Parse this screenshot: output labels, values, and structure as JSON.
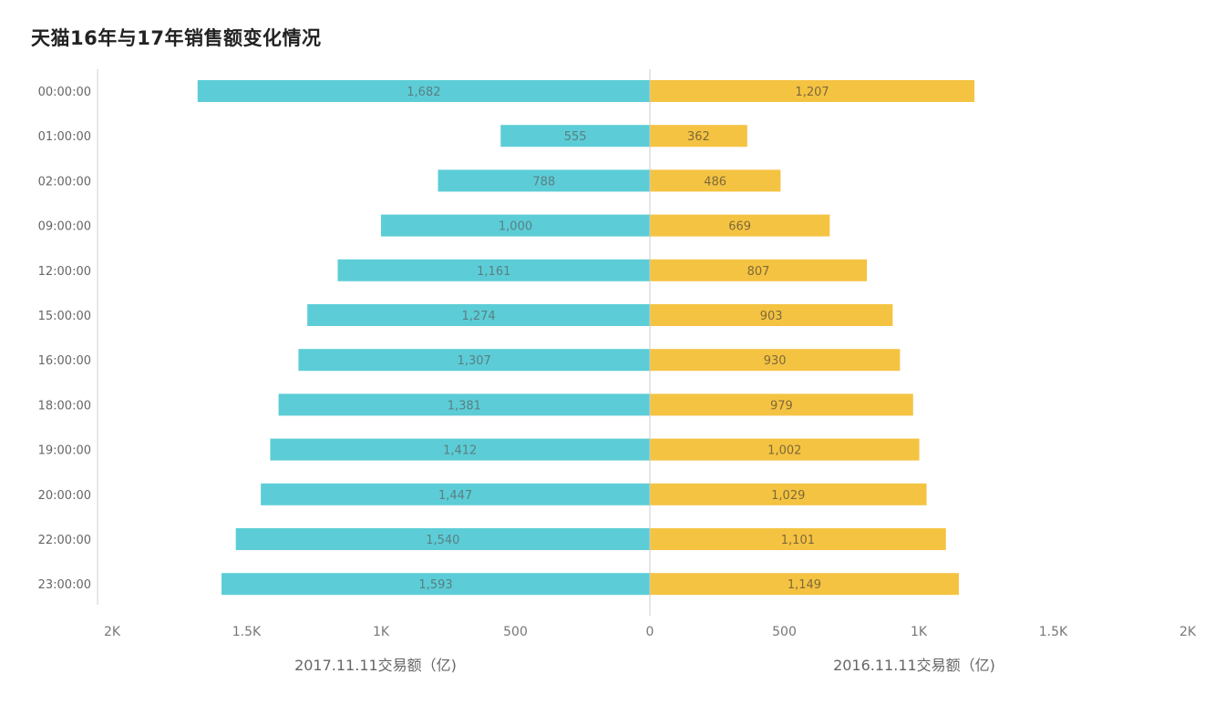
{
  "title": "天猫16年与17年销售额变化情况",
  "chart_data": {
    "type": "bar",
    "orientation": "horizontal-butterfly",
    "title": "天猫16年与17年销售额变化情况",
    "categories": [
      "00:00:00",
      "01:00:00",
      "02:00:00",
      "09:00:00",
      "12:00:00",
      "15:00:00",
      "16:00:00",
      "18:00:00",
      "19:00:00",
      "20:00:00",
      "22:00:00",
      "23:00:00"
    ],
    "series": [
      {
        "name": "2017.11.11交易额（亿)",
        "side": "left",
        "color": "#5ccdd6",
        "values": [
          1682,
          555,
          788,
          1000,
          1161,
          1274,
          1307,
          1381,
          1412,
          1447,
          1540,
          1593
        ],
        "labels": [
          "1,682",
          "555",
          "788",
          "1,000",
          "1,161",
          "1,274",
          "1,307",
          "1,381",
          "1,412",
          "1,447",
          "1,540",
          "1,593"
        ]
      },
      {
        "name": "2016.11.11交易额（亿)",
        "side": "right",
        "color": "#f5c342",
        "values": [
          1207,
          362,
          486,
          669,
          807,
          903,
          930,
          979,
          1002,
          1029,
          1101,
          1149
        ],
        "labels": [
          "1,207",
          "362",
          "486",
          "669",
          "807",
          "903",
          "930",
          "979",
          "1,002",
          "1,029",
          "1,101",
          "1,149"
        ]
      }
    ],
    "xlim": [
      0,
      2000
    ],
    "left_ticks": [
      "2K",
      "1.5K",
      "1K",
      "500",
      "0"
    ],
    "right_ticks": [
      "500",
      "1K",
      "1.5K",
      "2K"
    ],
    "xlabel_left": "2017.11.11交易额（亿)",
    "xlabel_right": "2016.11.11交易额（亿)",
    "grid": false
  }
}
